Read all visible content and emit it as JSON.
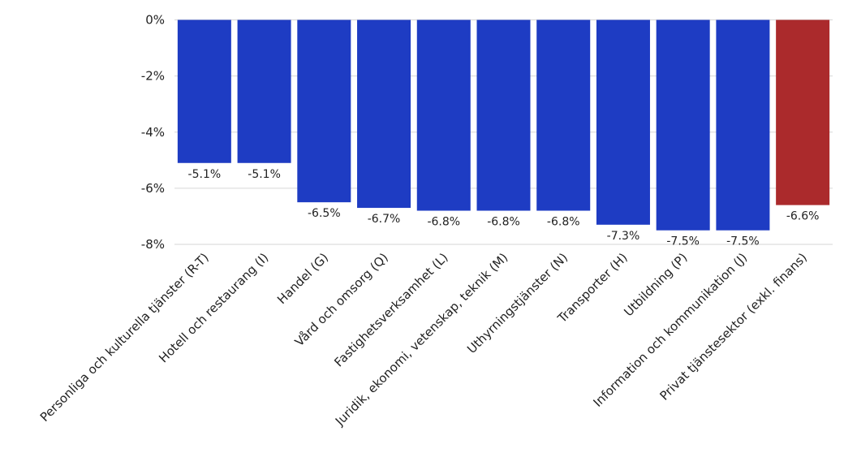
{
  "chart_data": {
    "type": "bar",
    "title": "",
    "xlabel": "",
    "ylabel": "",
    "ylim": [
      -8,
      0
    ],
    "yticks": [
      0,
      -2,
      -4,
      -6,
      -8
    ],
    "ytick_labels": [
      "0%",
      "-2%",
      "-4%",
      "-6%",
      "-8%"
    ],
    "grid": true,
    "categories": [
      "Personliga och kulturella tjänster (R-T)",
      "Hotell och restaurang (I)",
      "Handel (G)",
      "Vård och omsorg (Q)",
      "Fastighetsverksamhet (L)",
      "Juridik, ekonomi, vetenskap, teknik (M)",
      "Uthyrningstjänster (N)",
      "Transporter (H)",
      "Utbildning (P)",
      "Information och kommunikation (J)",
      "Privat tjänstesektor (exkl. finans)"
    ],
    "values": [
      -5.1,
      -5.1,
      -6.5,
      -6.7,
      -6.8,
      -6.8,
      -6.8,
      -7.3,
      -7.5,
      -7.5,
      -6.6
    ],
    "data_labels": [
      "-5.1%",
      "-5.1%",
      "-6.5%",
      "-6.7%",
      "-6.8%",
      "-6.8%",
      "-6.8%",
      "-7.3%",
      "-7.5%",
      "-7.5%",
      "-6.6%"
    ],
    "colors": [
      "#1e3cc3",
      "#1e3cc3",
      "#1e3cc3",
      "#1e3cc3",
      "#1e3cc3",
      "#1e3cc3",
      "#1e3cc3",
      "#1e3cc3",
      "#1e3cc3",
      "#1e3cc3",
      "#ab2a2c"
    ]
  }
}
